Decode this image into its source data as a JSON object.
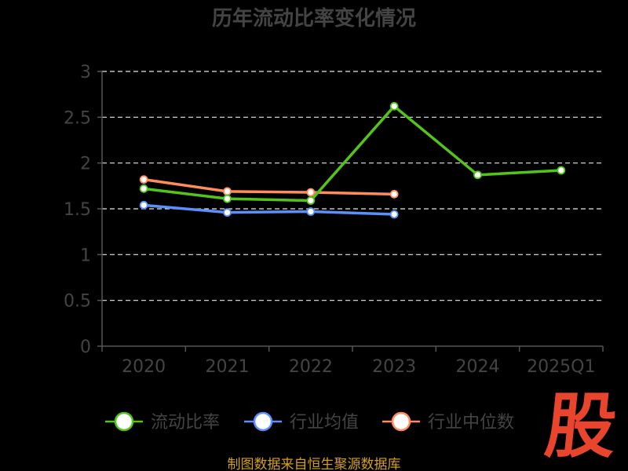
{
  "chart_data": {
    "type": "line",
    "title": "历年流动比率变化情况",
    "categories": [
      "2020",
      "2021",
      "2022",
      "2023",
      "2024",
      "2025Q1"
    ],
    "ylim": [
      0,
      3
    ],
    "yticks": [
      "0",
      "0.5",
      "1",
      "1.5",
      "2",
      "2.5",
      "3"
    ],
    "grid": true,
    "legend_position": "bottom",
    "series": [
      {
        "name": "流动比率",
        "color": "#52c41a",
        "values": [
          1.72,
          1.61,
          1.59,
          2.62,
          1.87,
          1.92
        ]
      },
      {
        "name": "行业均值",
        "color": "#5b8ff9",
        "values": [
          1.54,
          1.46,
          1.47,
          1.44,
          null,
          null
        ]
      },
      {
        "name": "行业中位数",
        "color": "#ff8c5a",
        "values": [
          1.82,
          1.69,
          1.68,
          1.66,
          null,
          null
        ]
      }
    ]
  },
  "source": "制图数据来自恒生聚源数据库",
  "logo_text": "股"
}
